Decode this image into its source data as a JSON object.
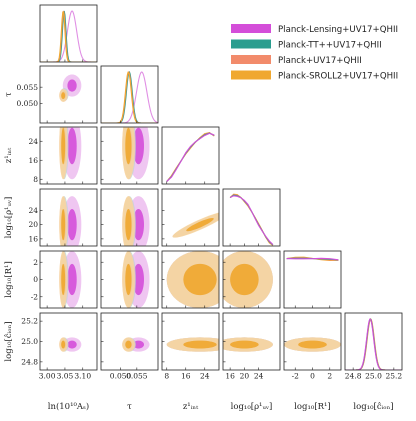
{
  "chart_data": {
    "type": "triangle",
    "params": [
      {
        "key": "lnAs",
        "label": "ln(10¹⁰Aₛ)",
        "range": [
          2.98,
          3.14
        ],
        "ticks": [
          "3.00",
          "3.05",
          "3.10"
        ],
        "tickvals": [
          3.0,
          3.05,
          3.1
        ]
      },
      {
        "key": "tau",
        "label": "τ",
        "range": [
          0.044,
          0.0615
        ],
        "ticks": [
          "0.050",
          "0.055"
        ],
        "tickvals": [
          0.05,
          0.055
        ]
      },
      {
        "key": "zint",
        "label": "z¹ᵢₙₜ",
        "range": [
          6,
          30
        ],
        "ticks": [
          "8",
          "16",
          "24"
        ],
        "tickvals": [
          8,
          16,
          24
        ]
      },
      {
        "key": "rhoUV",
        "label": "log₁₀[ρ¹ᵤᵥ]",
        "range": [
          14,
          30
        ],
        "ticks": [
          "16",
          "20",
          "24"
        ],
        "tickvals": [
          16,
          20,
          24
        ]
      },
      {
        "key": "R",
        "label": "log₁₀[R¹]",
        "range": [
          -3.3,
          3.3
        ],
        "ticks": [
          "-2",
          "0",
          "2"
        ],
        "tickvals": [
          -2,
          0,
          2
        ]
      },
      {
        "key": "cion",
        "label": "log₁₀[ĉᵢₒₙ]",
        "range": [
          24.72,
          25.28
        ],
        "ticks": [
          "24.8",
          "25.0",
          "25.2"
        ],
        "tickvals": [
          24.8,
          25.0,
          25.2
        ]
      }
    ],
    "series": [
      {
        "name": "Planck-Lensing+UV17+QHII",
        "color": "#d44ed9",
        "light": "#ecbcef"
      },
      {
        "name": "Planck-TT++UV17+QHII",
        "color": "#2a9d8f",
        "light": "#b3d9d4"
      },
      {
        "name": "Planck+UV17+QHII",
        "color": "#f28b6b",
        "light": "#f8cbb8"
      },
      {
        "name": "Planck-SROLL2+UV17+QHII",
        "color": "#f0a830",
        "light": "#f7d69a"
      }
    ],
    "legend_position": "top-right",
    "marginals": {
      "lnAs": [
        {
          "series": 0,
          "mean": 3.07,
          "sd": 0.013
        },
        {
          "series": 1,
          "mean": 3.048,
          "sd": 0.005
        },
        {
          "series": 2,
          "mean": 3.046,
          "sd": 0.005
        },
        {
          "series": 3,
          "mean": 3.045,
          "sd": 0.005
        }
      ],
      "tau": [
        {
          "series": 0,
          "mean": 0.0565,
          "sd": 0.0016
        },
        {
          "series": 1,
          "mean": 0.0527,
          "sd": 0.0009
        },
        {
          "series": 2,
          "mean": 0.0525,
          "sd": 0.0009
        },
        {
          "series": 3,
          "mean": 0.0524,
          "sd": 0.0009
        }
      ],
      "zint_curve": {
        "x": [
          8,
          10,
          12,
          14,
          16,
          18,
          20,
          22,
          24,
          26,
          28
        ],
        "y": [
          0.05,
          0.15,
          0.3,
          0.45,
          0.6,
          0.72,
          0.82,
          0.9,
          0.97,
          1.0,
          0.95
        ]
      },
      "rhoUV_curve": {
        "x": [
          16,
          17,
          18,
          19,
          20,
          21,
          22,
          23,
          24,
          25,
          26,
          27,
          28
        ],
        "y": [
          0.95,
          1.0,
          0.99,
          0.95,
          0.88,
          0.8,
          0.68,
          0.55,
          0.42,
          0.3,
          0.18,
          0.08,
          0.02
        ]
      },
      "R_curve": {
        "x": [
          -3,
          -2,
          -1,
          0,
          1,
          2,
          3
        ],
        "y": [
          0.97,
          0.98,
          0.98,
          0.97,
          0.96,
          0.95,
          0.94
        ]
      },
      "cion": {
        "mean": 24.97,
        "sd": 0.035
      }
    }
  }
}
